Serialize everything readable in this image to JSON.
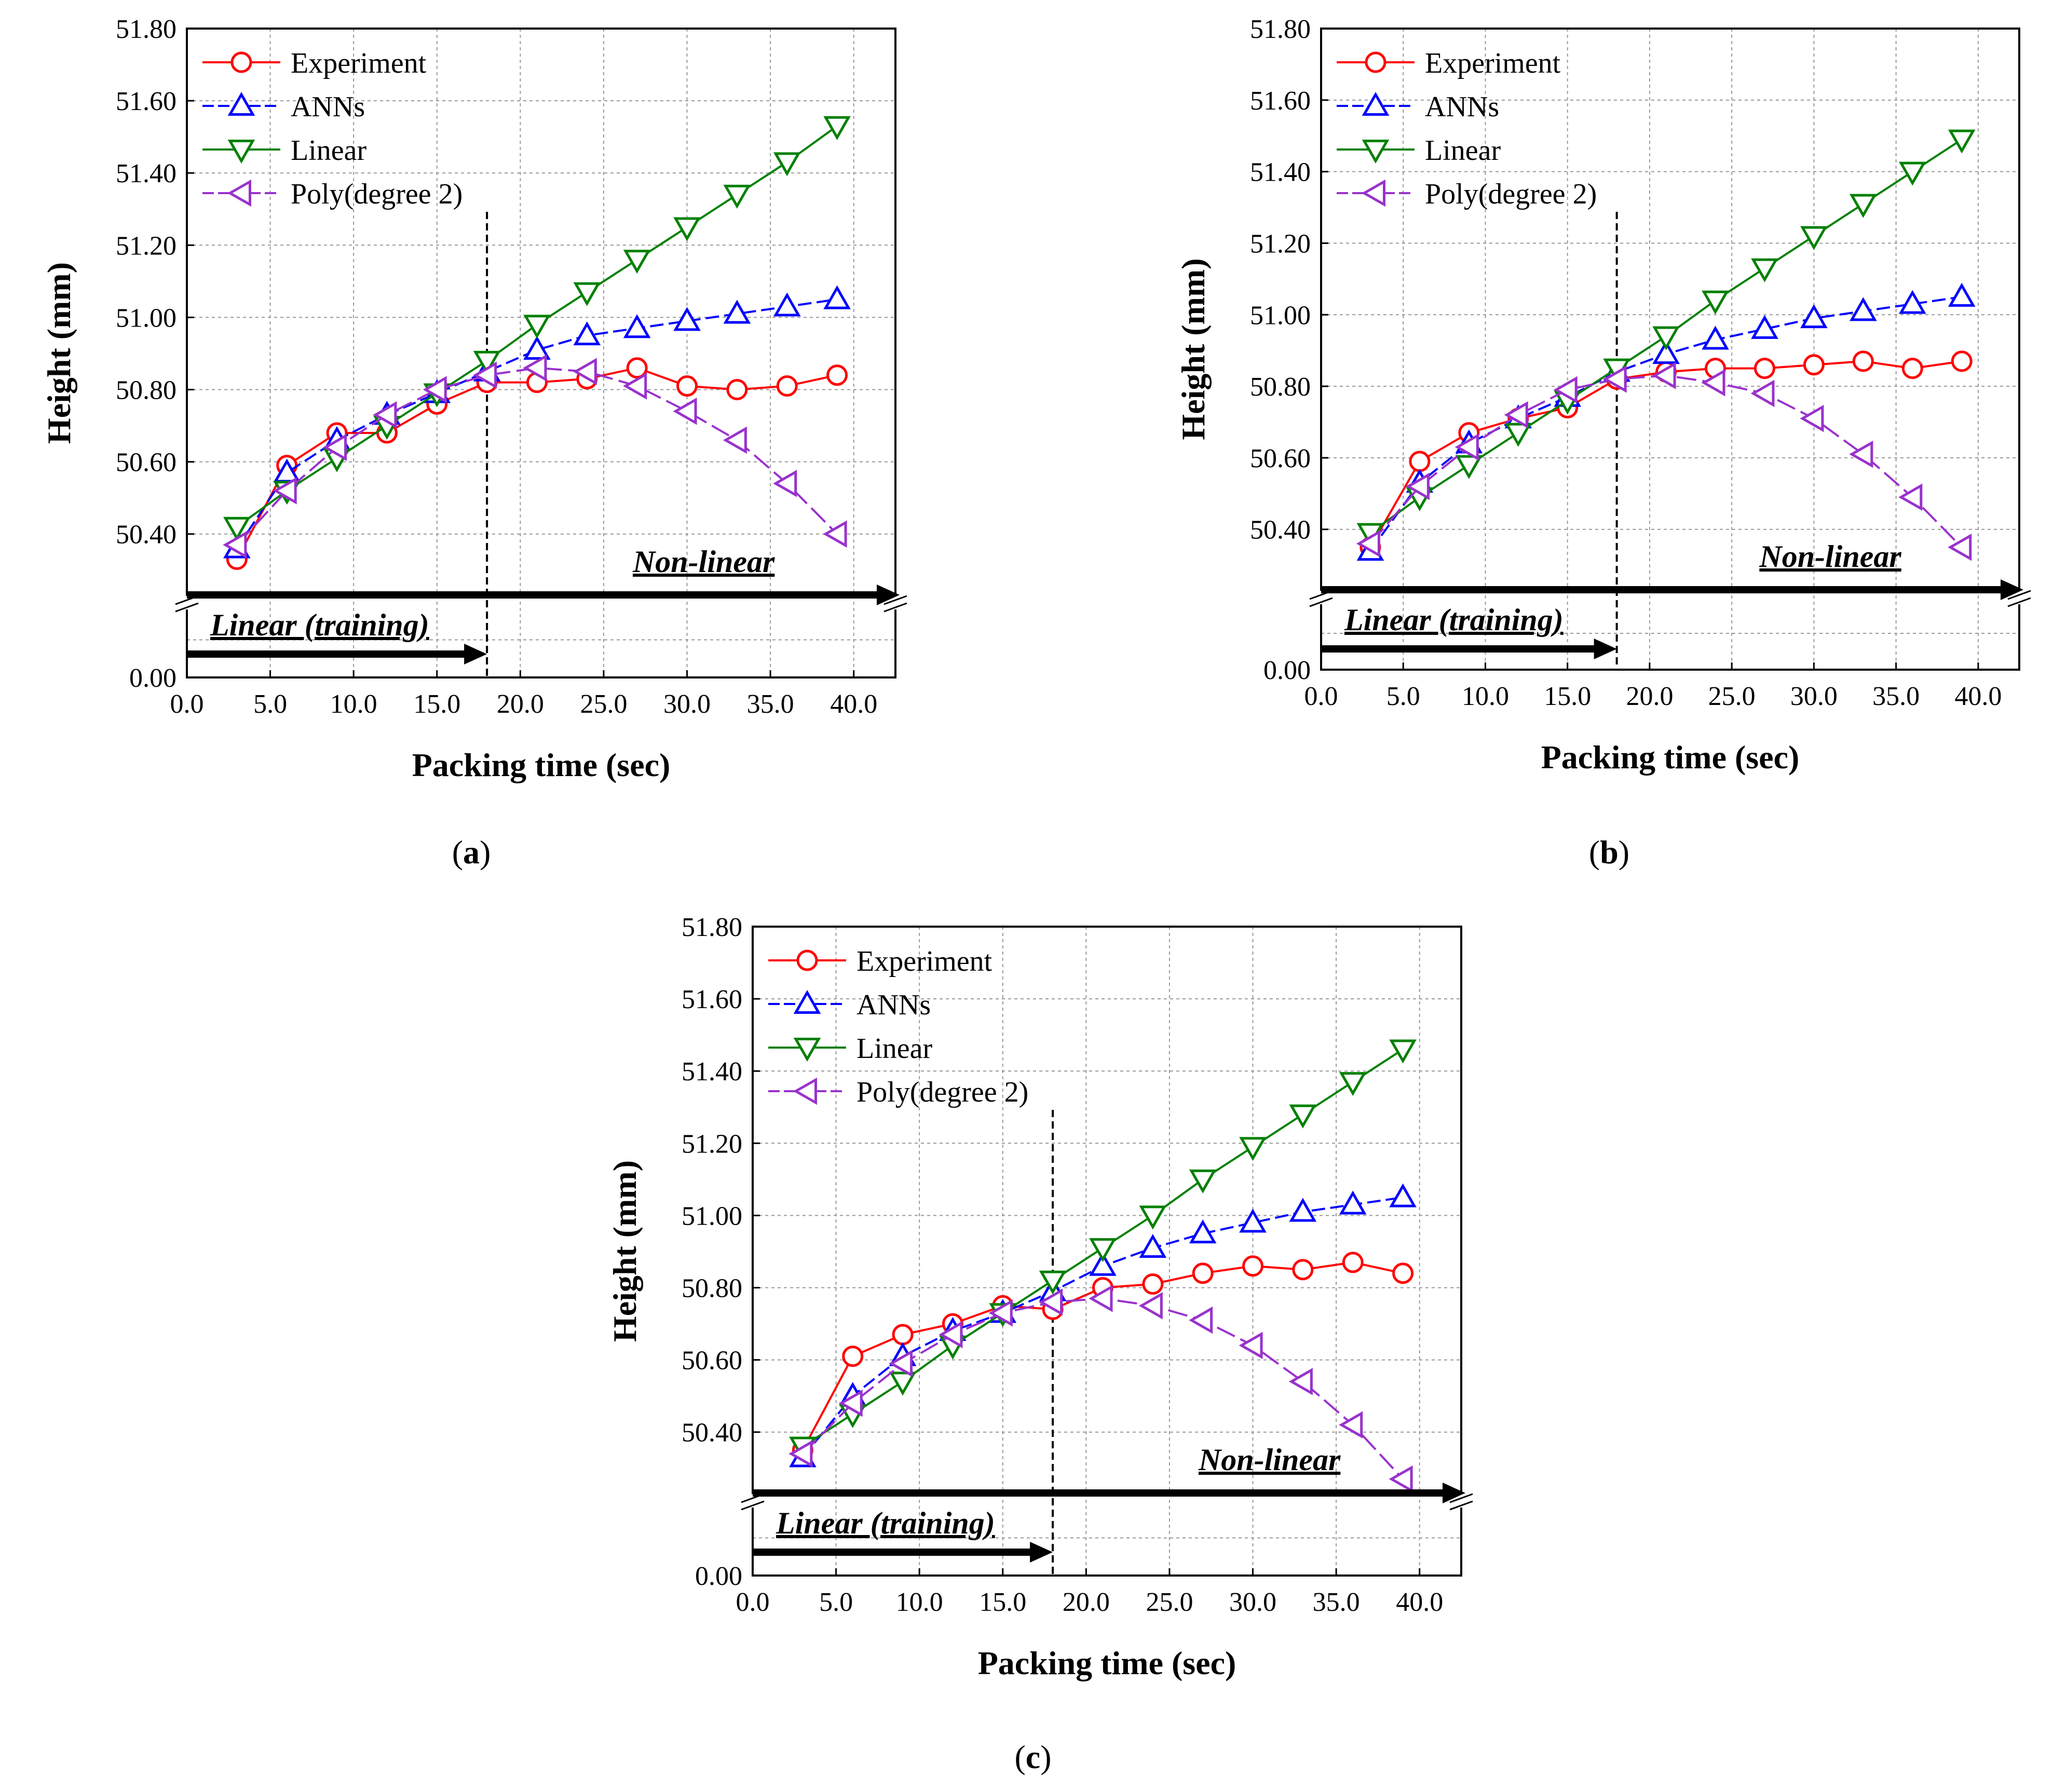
{
  "colors": {
    "experiment": "#ff0000",
    "anns": "#0000ff",
    "linear": "#008000",
    "poly": "#9932cc",
    "grid": "#999999",
    "axis": "#000000"
  },
  "chart_data": [
    {
      "id": "a",
      "caption_letter": "a",
      "type": "line",
      "xlabel": "Packing time (sec)",
      "ylabel": "Height (mm)",
      "xlim": [
        0,
        42.5
      ],
      "x_ticks": [
        "0.0",
        "5.0",
        "10.0",
        "15.0",
        "20.0",
        "25.0",
        "30.0",
        "35.0",
        "40.0"
      ],
      "y_ticks": [
        "0.00",
        "50.40",
        "50.60",
        "50.80",
        "51.00",
        "51.20",
        "51.40",
        "51.60",
        "51.80"
      ],
      "ylim_upper": [
        50.24,
        51.8
      ],
      "axis_break": true,
      "training_boundary_x": 18,
      "annotation_linear": "Linear (training)",
      "annotation_nonlinear": "Non-linear",
      "x": [
        3,
        6,
        9,
        12,
        15,
        18,
        21,
        24,
        27,
        30,
        33,
        36,
        39
      ],
      "series": [
        {
          "name": "Experiment",
          "marker": "circle",
          "values": [
            50.33,
            50.59,
            50.68,
            50.68,
            50.76,
            50.82,
            50.82,
            50.83,
            50.86,
            50.81,
            50.8,
            50.81,
            50.84
          ]
        },
        {
          "name": "ANNs",
          "marker": "triangle-up",
          "values": [
            50.36,
            50.57,
            50.66,
            50.73,
            50.79,
            50.85,
            50.91,
            50.95,
            50.97,
            50.99,
            51.01,
            51.03,
            51.05
          ]
        },
        {
          "name": "Linear",
          "marker": "triangle-down",
          "values": [
            50.42,
            50.52,
            50.61,
            50.7,
            50.79,
            50.88,
            50.98,
            51.07,
            51.16,
            51.25,
            51.34,
            51.43,
            51.53
          ]
        },
        {
          "name": "Poly(degree 2)",
          "marker": "triangle-left",
          "values": [
            50.37,
            50.52,
            50.64,
            50.73,
            50.8,
            50.84,
            50.86,
            50.85,
            50.81,
            50.74,
            50.66,
            50.54,
            50.4
          ]
        }
      ]
    },
    {
      "id": "b",
      "caption_letter": "b",
      "type": "line",
      "xlabel": "Packing time (sec)",
      "ylabel": "Height (mm)",
      "xlim": [
        0,
        42.5
      ],
      "x_ticks": [
        "0.0",
        "5.0",
        "10.0",
        "15.0",
        "20.0",
        "25.0",
        "30.0",
        "35.0",
        "40.0"
      ],
      "y_ticks": [
        "0.00",
        "50.40",
        "50.60",
        "50.80",
        "51.00",
        "51.20",
        "51.40",
        "51.60",
        "51.80"
      ],
      "ylim_upper": [
        50.24,
        51.8
      ],
      "axis_break": true,
      "training_boundary_x": 18,
      "annotation_linear": "Linear (training)",
      "annotation_nonlinear": "Non-linear",
      "x": [
        3,
        6,
        9,
        12,
        15,
        18,
        21,
        24,
        27,
        30,
        33,
        36,
        39
      ],
      "series": [
        {
          "name": "Experiment",
          "marker": "circle",
          "values": [
            50.35,
            50.59,
            50.67,
            50.71,
            50.74,
            50.82,
            50.84,
            50.85,
            50.85,
            50.86,
            50.87,
            50.85,
            50.87
          ]
        },
        {
          "name": "ANNs",
          "marker": "triangle-up",
          "values": [
            50.34,
            50.53,
            50.64,
            50.71,
            50.77,
            50.84,
            50.89,
            50.93,
            50.96,
            50.99,
            51.01,
            51.03,
            51.05
          ]
        },
        {
          "name": "Linear",
          "marker": "triangle-down",
          "values": [
            50.39,
            50.49,
            50.58,
            50.67,
            50.76,
            50.85,
            50.94,
            51.04,
            51.13,
            51.22,
            51.31,
            51.4,
            51.49
          ]
        },
        {
          "name": "Poly(degree 2)",
          "marker": "triangle-left",
          "values": [
            50.36,
            50.52,
            50.63,
            50.72,
            50.79,
            50.82,
            50.83,
            50.81,
            50.78,
            50.71,
            50.61,
            50.49,
            50.35
          ]
        }
      ]
    },
    {
      "id": "c",
      "caption_letter": "c",
      "type": "line",
      "xlabel": "Packing time (sec)",
      "ylabel": "Height (mm)",
      "xlim": [
        0,
        42.5
      ],
      "x_ticks": [
        "0.0",
        "5.0",
        "10.0",
        "15.0",
        "20.0",
        "25.0",
        "30.0",
        "35.0",
        "40.0"
      ],
      "y_ticks": [
        "0.00",
        "50.40",
        "50.60",
        "50.80",
        "51.00",
        "51.20",
        "51.40",
        "51.60",
        "51.80"
      ],
      "ylim_upper": [
        50.24,
        51.8
      ],
      "axis_break": true,
      "training_boundary_x": 18,
      "annotation_linear": "Linear (training)",
      "annotation_nonlinear": "Non-linear",
      "x": [
        3,
        6,
        9,
        12,
        15,
        18,
        21,
        24,
        27,
        30,
        33,
        36,
        39
      ],
      "series": [
        {
          "name": "Experiment",
          "marker": "circle",
          "values": [
            50.35,
            50.61,
            50.67,
            50.7,
            50.75,
            50.74,
            50.8,
            50.81,
            50.84,
            50.86,
            50.85,
            50.87,
            50.84
          ]
        },
        {
          "name": "ANNs",
          "marker": "triangle-up",
          "values": [
            50.33,
            50.5,
            50.61,
            50.68,
            50.73,
            50.79,
            50.86,
            50.91,
            50.95,
            50.98,
            51.01,
            51.03,
            51.05
          ]
        },
        {
          "name": "Linear",
          "marker": "triangle-down",
          "values": [
            50.36,
            50.45,
            50.54,
            50.64,
            50.73,
            50.82,
            50.91,
            51.0,
            51.1,
            51.19,
            51.28,
            51.37,
            51.46
          ]
        },
        {
          "name": "Poly(degree 2)",
          "marker": "triangle-left",
          "values": [
            50.34,
            50.48,
            50.59,
            50.67,
            50.73,
            50.76,
            50.77,
            50.75,
            50.71,
            50.64,
            50.54,
            50.42,
            50.27
          ]
        }
      ]
    }
  ]
}
